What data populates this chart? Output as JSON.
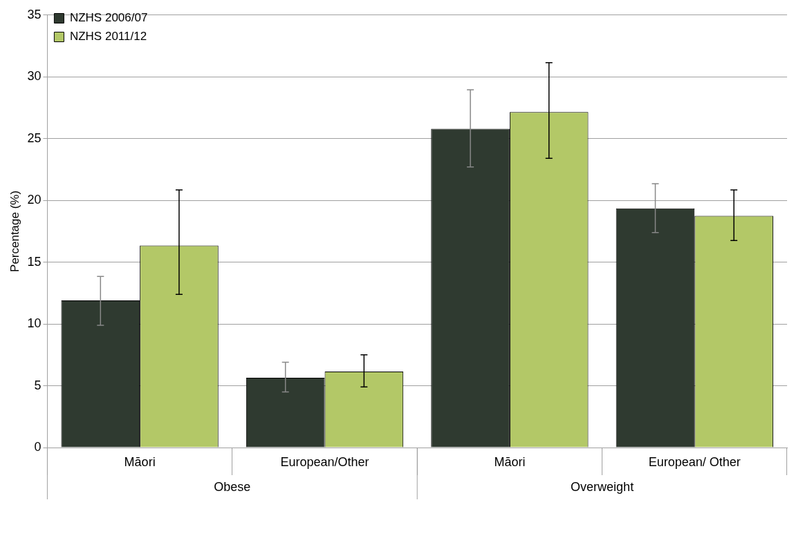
{
  "chart_data": {
    "type": "bar",
    "ylabel": "Percentage (%)",
    "categories": [
      "Māori",
      "European/Other",
      "Māori",
      "European/ Other"
    ],
    "series": [
      {
        "name": "NZHS 2006/07",
        "color": "#2f3a30",
        "values": [
          11.9,
          5.65,
          25.8,
          19.35
        ],
        "errors": [
          [
            9.9,
            13.85
          ],
          [
            4.5,
            6.9
          ],
          [
            22.7,
            28.95
          ],
          [
            17.4,
            21.35
          ]
        ]
      },
      {
        "name": "NZHS 2011/12",
        "color": "#b3c867",
        "values": [
          16.35,
          6.15,
          27.15,
          18.75
        ],
        "errors": [
          [
            12.4,
            20.85
          ],
          [
            4.9,
            7.5
          ],
          [
            23.4,
            31.15
          ],
          [
            16.75,
            20.85
          ]
        ]
      }
    ],
    "annotations": [
      "Obese",
      "Overweight"
    ],
    "ylim": [
      0,
      35
    ],
    "yticks": [
      0,
      5,
      10,
      15,
      20,
      25,
      30,
      35
    ],
    "grid": "y",
    "legend": "top left"
  }
}
